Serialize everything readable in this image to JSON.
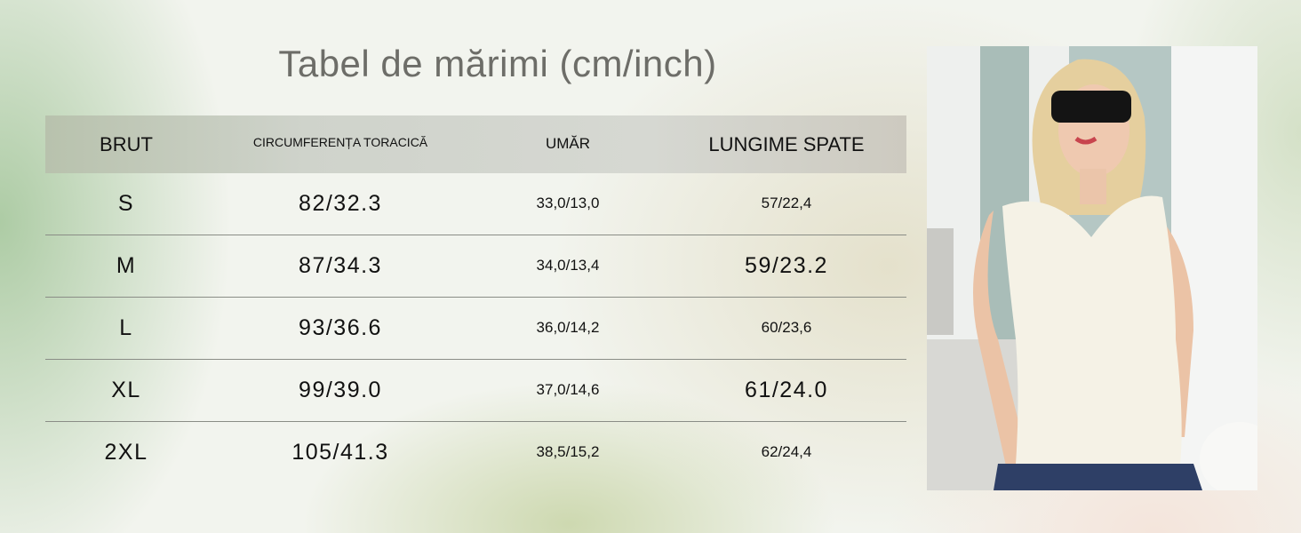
{
  "title": "Tabel de mărimi (cm/inch)",
  "table": {
    "headers": [
      "BRUT",
      "CIRCUMFERENȚA TORACICĂ",
      "UMĂR",
      "LUNGIME SPATE"
    ],
    "rows": [
      [
        "S",
        "82/32.3",
        "33,0/13,0",
        "57/22,4"
      ],
      [
        "M",
        "87/34.3",
        "34,0/13,4",
        "59/23.2"
      ],
      [
        "L",
        "93/36.6",
        "36,0/14,2",
        "60/23,6"
      ],
      [
        "XL",
        "99/39.0",
        "37,0/14,6",
        "61/24.0"
      ],
      [
        "2XL",
        "105/41.3",
        "38,5/15,2",
        "62/24,4"
      ]
    ]
  },
  "colors": {
    "header_bg": "#d3d6cf",
    "title": "#6d6d68",
    "divider": "#8a8d86"
  }
}
